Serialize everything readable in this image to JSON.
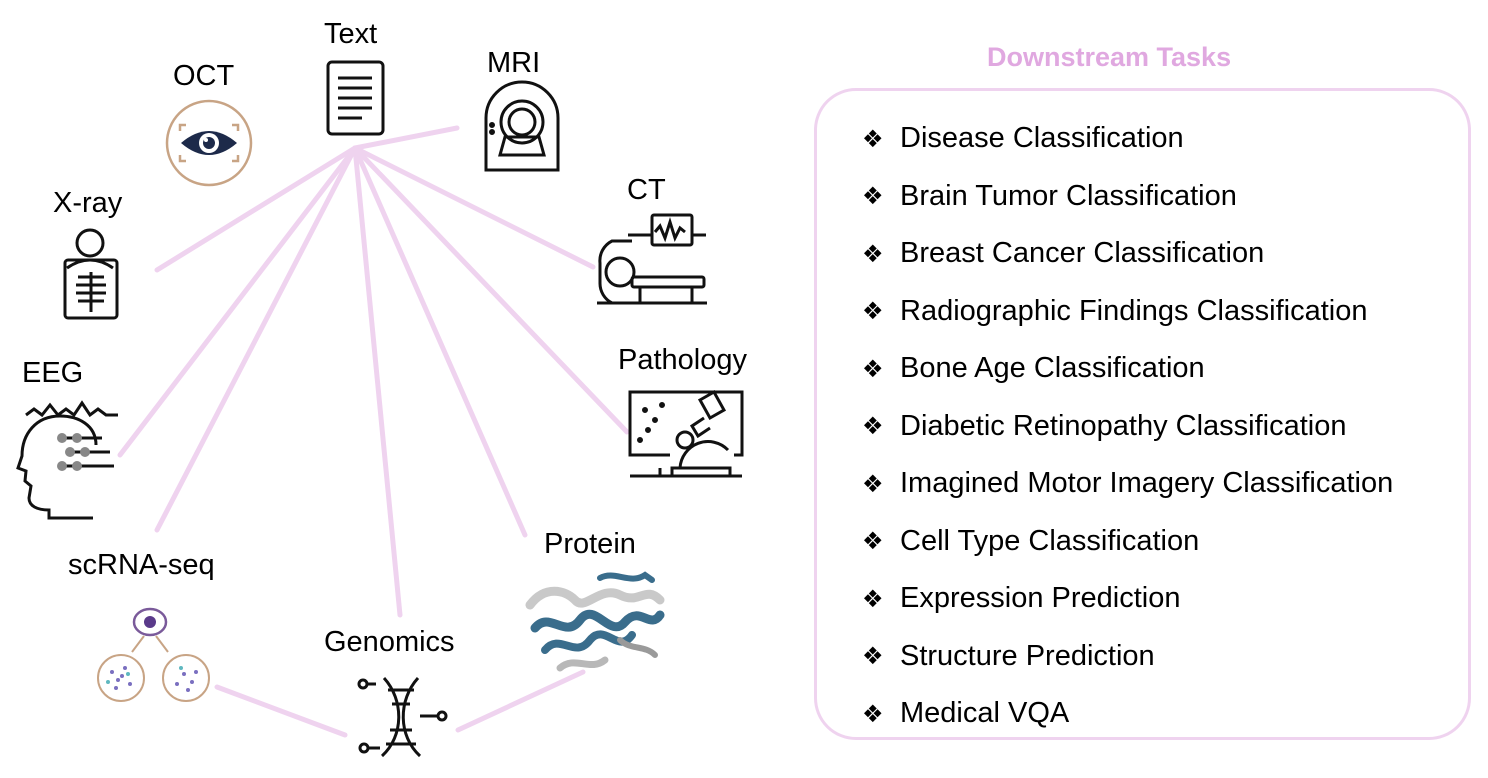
{
  "modalities": {
    "text": "Text",
    "oct": "OCT",
    "mri": "MRI",
    "xray": "X-ray",
    "ct": "CT",
    "eeg": "EEG",
    "pathology": "Pathology",
    "scrnaseq": "scRNA-seq",
    "protein": "Protein",
    "genomics": "Genomics"
  },
  "tasks": {
    "title": "Downstream Tasks",
    "bullet": "❖",
    "items": [
      "Disease Classification",
      "Brain Tumor Classification",
      "Breast Cancer Classification",
      "Radiographic Findings Classification",
      "Bone Age Classification",
      "Diabetic Retinopathy Classification",
      "Imagined Motor Imagery Classification",
      "Cell Type Classification",
      "Expression Prediction",
      "Structure Prediction",
      "Medical VQA"
    ]
  },
  "colors": {
    "connector": "#efd3ef",
    "title": "#e0a8e0",
    "box_border": "#efd3ef",
    "oct_eye": "#1d2a4a",
    "oct_ring": "#c8a485",
    "protein": "#3a6d8c"
  }
}
